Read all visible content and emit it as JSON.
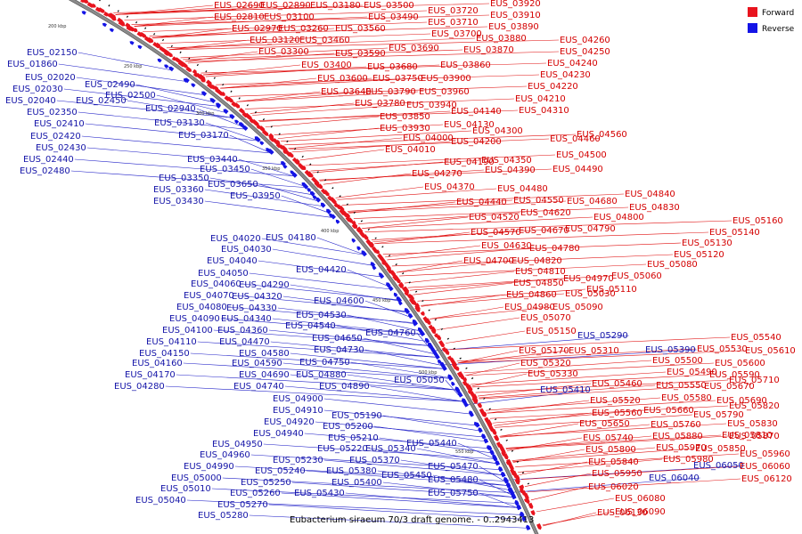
{
  "caption": "Eubacterium siraeum 70/3 draft genome. - 0..2943413",
  "legend": [
    {
      "label": "Forward",
      "color": "#e8141e"
    },
    {
      "label": "Reverse",
      "color": "#1414e6"
    }
  ],
  "colors": {
    "backbone": "#8a8a8a",
    "forward": "#e8141e",
    "reverse": "#1414e6"
  },
  "scale_ticks": [
    {
      "label": "200 kbp"
    },
    {
      "label": "250 kbp"
    },
    {
      "label": "300 kbp"
    },
    {
      "label": "350 kbp"
    },
    {
      "label": "400 kbp"
    },
    {
      "label": "450 kbp"
    },
    {
      "label": "500 kbp"
    },
    {
      "label": "550 kbp"
    }
  ],
  "reverse_genes": [
    "EUS_02150",
    "EUS_01860",
    "EUS_02020",
    "EUS_02030",
    "EUS_02040",
    "EUS_02350",
    "EUS_02410",
    "EUS_02420",
    "EUS_02430",
    "EUS_02440",
    "EUS_02480",
    "EUS_02490",
    "EUS_02450",
    "EUS_02500",
    "EUS_02940",
    "EUS_03130",
    "EUS_03170",
    "EUS_03440",
    "EUS_03450",
    "EUS_03350",
    "EUS_03650",
    "EUS_03360",
    "EUS_03430",
    "EUS_03950",
    "EUS_04020",
    "EUS_04180",
    "EUS_04030",
    "EUS_04040",
    "EUS_04050",
    "EUS_04420",
    "EUS_04060",
    "EUS_04290",
    "EUS_04070",
    "EUS_04320",
    "EUS_04600",
    "EUS_04080",
    "EUS_04330",
    "EUS_04090",
    "EUS_04340",
    "EUS_04530",
    "EUS_04100",
    "EUS_04360",
    "EUS_04540",
    "EUS_04110",
    "EUS_04470",
    "EUS_04650",
    "EUS_04760",
    "EUS_04150",
    "EUS_04580",
    "EUS_04730",
    "EUS_04160",
    "EUS_04590",
    "EUS_04750",
    "EUS_04170",
    "EUS_04690",
    "EUS_04880",
    "EUS_04280",
    "EUS_04740",
    "EUS_04890",
    "EUS_05050",
    "EUS_04900",
    "EUS_04910",
    "EUS_05190",
    "EUS_04920",
    "EUS_05200",
    "EUS_04940",
    "EUS_05210",
    "EUS_04950",
    "EUS_05220",
    "EUS_05340",
    "EUS_04960",
    "EUS_05230",
    "EUS_05370",
    "EUS_05440",
    "EUS_04990",
    "EUS_05240",
    "EUS_05380",
    "EUS_05000",
    "EUS_05250",
    "EUS_05400",
    "EUS_05450",
    "EUS_05470",
    "EUS_05010",
    "EUS_05260",
    "EUS_05430",
    "EUS_05480",
    "EUS_05040",
    "EUS_05270",
    "EUS_05750",
    "EUS_05280",
    "EUS_05290",
    "EUS_05390",
    "EUS_05410",
    "EUS_06050",
    "EUS_06040"
  ],
  "forward_genes": [
    "EUS_02690",
    "EUS_02890",
    "EUS_03180",
    "EUS_03500",
    "EUS_03720",
    "EUS_03920",
    "EUS_02810",
    "EUS_03100",
    "EUS_03490",
    "EUS_03710",
    "EUS_03910",
    "EUS_02970",
    "EUS_03260",
    "EUS_03560",
    "EUS_03700",
    "EUS_03890",
    "EUS_03120",
    "EUS_03460",
    "EUS_03880",
    "EUS_03300",
    "EUS_03590",
    "EUS_03690",
    "EUS_03870",
    "EUS_03400",
    "EUS_03680",
    "EUS_03860",
    "EUS_03600",
    "EUS_03750",
    "EUS_03900",
    "EUS_03640",
    "EUS_03790",
    "EUS_03960",
    "EUS_03780",
    "EUS_03940",
    "EUS_03850",
    "EUS_04140",
    "EUS_04310",
    "EUS_03930",
    "EUS_04130",
    "EUS_04300",
    "EUS_04000",
    "EUS_04200",
    "EUS_04010",
    "EUS_04190",
    "EUS_04350",
    "EUS_04270",
    "EUS_04390",
    "EUS_04370",
    "EUS_04480",
    "EUS_04440",
    "EUS_04550",
    "EUS_04520",
    "EUS_04620",
    "EUS_04570",
    "EUS_04670",
    "EUS_04630",
    "EUS_04780",
    "EUS_04700",
    "EUS_04820",
    "EUS_04810",
    "EUS_04850",
    "EUS_04860",
    "EUS_04980",
    "EUS_05070",
    "EUS_05150",
    "EUS_05170",
    "EUS_05310",
    "EUS_05320",
    "EUS_05330",
    "EUS_05460",
    "EUS_05520",
    "EUS_05560",
    "EUS_05650",
    "EUS_05740",
    "EUS_05800",
    "EUS_05840",
    "EUS_05950",
    "EUS_06020",
    "EUS_06080",
    "EUS_06090",
    "EUS_06130",
    "EUS_04260",
    "EUS_04250",
    "EUS_04240",
    "EUS_04230",
    "EUS_04220",
    "EUS_04210",
    "EUS_04460",
    "EUS_04560",
    "EUS_04500",
    "EUS_04490",
    "EUS_04680",
    "EUS_04840",
    "EUS_04830",
    "EUS_04800",
    "EUS_04790",
    "EUS_05160",
    "EUS_05140",
    "EUS_05130",
    "EUS_05120",
    "EUS_05080",
    "EUS_05060",
    "EUS_04970",
    "EUS_05110",
    "EUS_05030",
    "EUS_05090",
    "EUS_05540",
    "EUS_05530",
    "EUS_05610",
    "EUS_05500",
    "EUS_05600",
    "EUS_05490",
    "EUS_05590",
    "EUS_05710",
    "EUS_05550",
    "EUS_05670",
    "EUS_05580",
    "EUS_05690",
    "EUS_05820",
    "EUS_05660",
    "EUS_05790",
    "EUS_05760",
    "EUS_05830",
    "EUS_05880",
    "EUS_05810",
    "EUS_05870",
    "EUS_05970",
    "EUS_05850",
    "EUS_05980",
    "EUS_05960",
    "EUS_06060",
    "EUS_06120",
    "EUS_06110"
  ]
}
